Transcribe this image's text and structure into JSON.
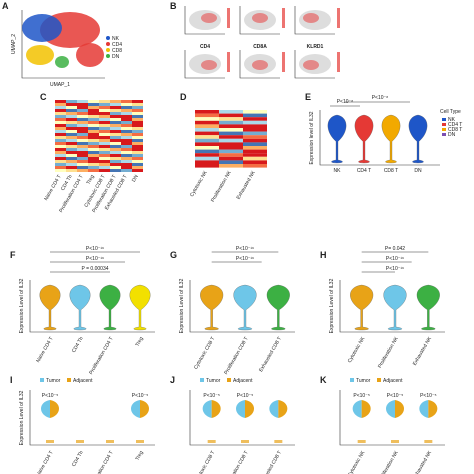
{
  "panels": {
    "A": {
      "label": "A",
      "x_label": "UMAP_1",
      "y_label": "UMAP_2",
      "legend": [
        "NK",
        "CD4",
        "CD8",
        "DN"
      ]
    },
    "B": {
      "label": "B",
      "features": [
        "CD4",
        "CD8A",
        "KLRD1"
      ]
    },
    "C": {
      "label": "C",
      "columns": [
        "Naive CD4 T",
        "CD4 Th",
        "Proliferation CD4 T",
        "Treg",
        "Cytotoxic CD8 T",
        "Proliferation CD8 T",
        "Exhausted CD8 T",
        "DN"
      ]
    },
    "D": {
      "label": "D",
      "columns": [
        "Cytotoxic NK",
        "Proliferation NK",
        "Exhausted NK"
      ]
    },
    "E": {
      "label": "E",
      "pvalues": [
        "P<10⁻⁸",
        "P<10⁻⁸"
      ],
      "y_label": "Expression level of IL32",
      "legend_title": "Cell Type",
      "categories": [
        "NK",
        "CD4 T",
        "CD8 T",
        "DN"
      ]
    },
    "F": {
      "label": "F",
      "pvalues": [
        "P<10⁻¹⁶",
        "P<10⁻¹⁶",
        "P = 0.00034"
      ],
      "y_label": "Expression Level of IL32",
      "categories": [
        "Naive CD4 T",
        "CD4 Th",
        "Proliferation CD4 T",
        "Treg"
      ]
    },
    "G": {
      "label": "G",
      "pvalues": [
        "P<10⁻¹⁶",
        "P<10⁻¹⁶"
      ],
      "y_label": "Expression Level of IL32",
      "categories": [
        "Cytotoxic CD8 T",
        "Proliferation CD8 T",
        "Exhausted CD8 T"
      ]
    },
    "H": {
      "label": "H",
      "pvalues": [
        "P= 0.042",
        "P<10⁻¹⁶",
        "P<10⁻¹⁶"
      ],
      "y_label": "Expression Level of IL32",
      "categories": [
        "Cytotoxic NK",
        "Proliferation NK",
        "Exhausted NK"
      ]
    },
    "I": {
      "label": "I",
      "legend": [
        "Tumor",
        "Adjacent"
      ],
      "pvalues": [
        "P<10⁻⁵",
        "P<10⁻⁵"
      ],
      "y_label": "Expression Level of IL32",
      "categories": [
        "Naive CD4 T",
        "CD4 Th",
        "Proliferation CD4 T",
        "Treg"
      ]
    },
    "J": {
      "label": "J",
      "legend": [
        "Tumor",
        "Adjacent"
      ],
      "pvalues": [
        "P<10⁻⁵",
        "P<10⁻⁵"
      ],
      "categories": [
        "Cytotoxic CD8 T",
        "Proliferation CD8 T",
        "Exhausted CD8 T"
      ]
    },
    "K": {
      "label": "K",
      "legend": [
        "Tumor",
        "Adjacent"
      ],
      "pvalues": [
        "P<10⁻⁵",
        "P<10⁻⁵",
        "P<10⁻⁵"
      ],
      "categories": [
        "Cytotoxic NK",
        "Proliferation NK",
        "Exhausted NK"
      ]
    }
  }
}
